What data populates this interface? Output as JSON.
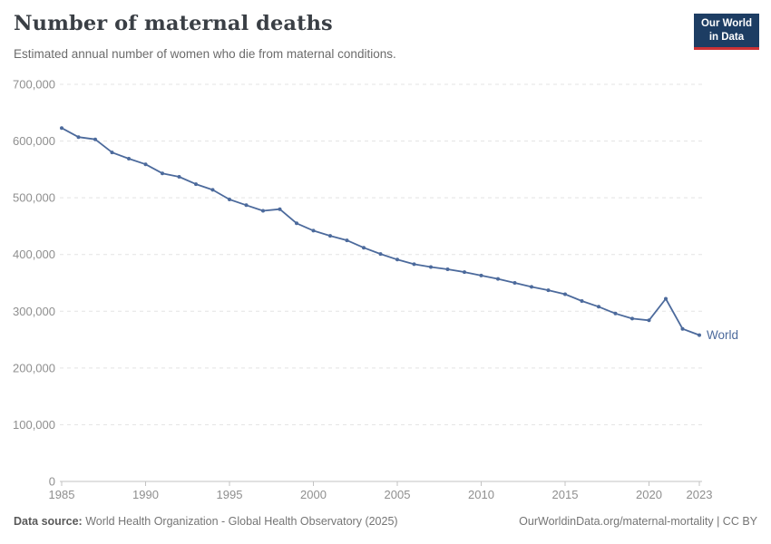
{
  "chart_data": {
    "type": "line",
    "title": "Number of maternal deaths",
    "subtitle": "Estimated annual number of women who die from maternal conditions.",
    "grid": "horizontal-dashed",
    "legend_position": "end-of-line-label",
    "xlim": [
      1985,
      2023
    ],
    "ylim": [
      0,
      700000
    ],
    "xticks": [
      1985,
      1990,
      1995,
      2000,
      2005,
      2010,
      2015,
      2020,
      2023
    ],
    "yticks": [
      0,
      100000,
      200000,
      300000,
      400000,
      500000,
      600000,
      700000
    ],
    "x": [
      1985,
      1986,
      1987,
      1988,
      1989,
      1990,
      1991,
      1992,
      1993,
      1994,
      1995,
      1996,
      1997,
      1998,
      1999,
      2000,
      2001,
      2002,
      2003,
      2004,
      2005,
      2006,
      2007,
      2008,
      2009,
      2010,
      2011,
      2012,
      2013,
      2014,
      2015,
      2016,
      2017,
      2018,
      2019,
      2020,
      2021,
      2022,
      2023
    ],
    "series": [
      {
        "name": "World",
        "color": "#4c6a9c",
        "values": [
          623000,
          607000,
          603000,
          580000,
          569000,
          559000,
          543000,
          537000,
          524000,
          514000,
          497000,
          487000,
          477000,
          480000,
          455000,
          442000,
          433000,
          425000,
          412000,
          401000,
          391000,
          383000,
          378000,
          374000,
          369000,
          363000,
          357000,
          350000,
          343000,
          337000,
          330000,
          318000,
          308000,
          296000,
          287000,
          284000,
          322000,
          269000,
          258000
        ]
      }
    ]
  },
  "logo": {
    "line1": "Our World",
    "line2": "in Data"
  },
  "footer": {
    "datasource_label": "Data source:",
    "datasource_text": " World Health Organization - Global Health Observatory (2025)",
    "link_text": "OurWorldinData.org/maternal-mortality",
    "license_text": " | CC BY"
  },
  "colors": {
    "line": "#4c6a9c",
    "grid": "#e3e3e3",
    "axis": "#c3c3c3",
    "tick_label": "#8f8f8f",
    "logo_bg": "#1d3d63",
    "logo_red": "#cd3235"
  }
}
